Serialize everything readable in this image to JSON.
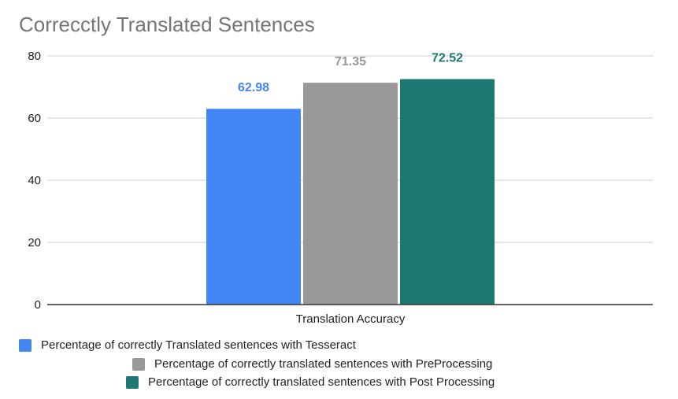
{
  "chart_data": {
    "type": "bar",
    "title": "Correcctly Translated Sentences",
    "categories": [
      "Translation Accuracy"
    ],
    "series": [
      {
        "name": "Percentage of correctly Translated sentences with Tesseract",
        "values": [
          62.98
        ],
        "label": "62.98",
        "color": "#4285f4"
      },
      {
        "name": "Percentage of correctly translated sentences with PreProcessing",
        "values": [
          71.35
        ],
        "label": "71.35",
        "color": "#999999"
      },
      {
        "name": "Percentage of correctly translated sentences with Post Processing",
        "values": [
          72.52
        ],
        "label": "72.52",
        "color": "#1e7770"
      }
    ],
    "ylim": [
      0,
      80
    ],
    "yticks": [
      "0",
      "20",
      "40",
      "60",
      "80"
    ],
    "grid": true,
    "legend_position": "bottom"
  }
}
